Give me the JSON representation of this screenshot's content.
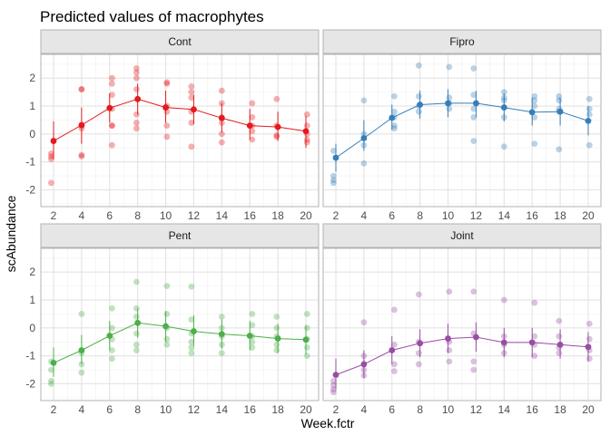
{
  "chart_data": {
    "type": "line",
    "title": "Predicted values of macrophytes",
    "xlabel": "Week.fctr",
    "ylabel": "scAbundance",
    "categories": [
      "2",
      "4",
      "6",
      "8",
      "10",
      "12",
      "14",
      "16",
      "18",
      "20"
    ],
    "ylim": [
      -2.6,
      2.85
    ],
    "yticks": [
      -2,
      -1,
      0,
      1,
      2
    ],
    "grid": true,
    "legend": "none",
    "panels": [
      {
        "name": "Cont",
        "color": "#E41A1C",
        "predicted": [
          -0.25,
          0.32,
          0.93,
          1.25,
          0.95,
          0.88,
          0.57,
          0.3,
          0.25,
          0.1
        ],
        "ci_low": [
          -0.9,
          -0.35,
          0.4,
          0.7,
          0.4,
          0.35,
          0.05,
          -0.2,
          -0.25,
          -0.5
        ],
        "ci_high": [
          0.45,
          0.95,
          1.45,
          1.8,
          1.55,
          1.4,
          1.1,
          0.9,
          0.8,
          0.65
        ],
        "observations": [
          [
            -1.75,
            -0.9,
            -0.7,
            -0.8
          ],
          [
            1.6,
            1.6,
            -0.75,
            -0.8,
            0.3,
            0.2
          ],
          [
            2.0,
            1.8,
            1.4,
            0.9,
            0.3,
            0.3,
            -0.4
          ],
          [
            2.35,
            2.2,
            2.0,
            1.6,
            0.7,
            0.4,
            0.2
          ],
          [
            1.85,
            1.8,
            1.0,
            0.8,
            0.3,
            -0.1
          ],
          [
            1.7,
            1.5,
            1.3,
            0.8,
            0.4,
            -0.45
          ],
          [
            1.55,
            1.1,
            0.6,
            0.4,
            0.0,
            -0.3
          ],
          [
            1.1,
            0.6,
            0.3,
            0.1,
            -0.2
          ],
          [
            1.25,
            0.3,
            -0.05,
            -0.1
          ],
          [
            0.7,
            0.3,
            0.0,
            -0.2,
            -0.3
          ]
        ]
      },
      {
        "name": "Fipro",
        "color": "#377EB8",
        "predicted": [
          -0.85,
          -0.15,
          0.58,
          1.05,
          1.1,
          1.1,
          0.95,
          0.78,
          0.8,
          0.47
        ],
        "ci_low": [
          -1.35,
          -0.6,
          0.15,
          0.55,
          0.6,
          0.6,
          0.45,
          0.3,
          0.3,
          -0.05
        ],
        "ci_high": [
          -0.35,
          0.5,
          1.05,
          1.55,
          1.6,
          1.55,
          1.45,
          1.3,
          1.3,
          1.0
        ],
        "observations": [
          [
            -0.6,
            -1.5,
            -1.65,
            -1.75
          ],
          [
            1.2,
            0.0,
            -0.4,
            -1.05
          ],
          [
            1.35,
            0.8,
            0.6,
            0.3,
            0.2
          ],
          [
            2.45,
            1.35,
            1.0,
            0.8
          ],
          [
            2.4,
            1.3,
            1.1,
            0.9
          ],
          [
            2.35,
            1.4,
            0.9,
            0.6,
            -0.25
          ],
          [
            1.5,
            1.3,
            1.2,
            0.6,
            -0.45
          ],
          [
            1.35,
            1.2,
            1.0,
            0.6,
            -0.35
          ],
          [
            1.35,
            1.2,
            0.9,
            0.8,
            -0.55
          ],
          [
            1.25,
            0.9,
            0.7,
            -0.4
          ]
        ]
      },
      {
        "name": "Pent",
        "color": "#4DAF4A",
        "predicted": [
          -1.25,
          -0.8,
          -0.28,
          0.18,
          0.06,
          -0.12,
          -0.22,
          -0.28,
          -0.38,
          -0.42
        ],
        "ci_low": [
          -1.75,
          -1.3,
          -0.8,
          -0.35,
          -0.5,
          -0.65,
          -0.75,
          -0.8,
          -0.9,
          -0.95
        ],
        "ci_high": [
          -0.7,
          -0.25,
          0.25,
          0.7,
          0.6,
          0.45,
          0.3,
          0.25,
          0.15,
          0.1
        ],
        "observations": [
          [
            -1.2,
            -1.5,
            -1.9,
            -2.0
          ],
          [
            0.5,
            -0.9,
            -1.3,
            -1.6
          ],
          [
            0.7,
            0.0,
            -0.4,
            -0.8,
            -1.1
          ],
          [
            1.65,
            0.7,
            0.4,
            -0.2,
            -0.6,
            -0.8
          ],
          [
            1.5,
            0.5,
            0.0,
            -0.4,
            -0.6
          ],
          [
            1.48,
            0.3,
            -0.2,
            -0.5,
            -0.7,
            -0.9
          ],
          [
            0.4,
            0.0,
            -0.3,
            -0.6,
            -0.9
          ],
          [
            0.5,
            0.1,
            -0.3,
            -0.5,
            -0.7
          ],
          [
            0.4,
            0.0,
            -0.3,
            -0.6,
            -0.8
          ],
          [
            0.5,
            0.0,
            -0.4,
            -0.7,
            -1.0
          ]
        ]
      },
      {
        "name": "Joint",
        "color": "#984EA3",
        "predicted": [
          -1.68,
          -1.3,
          -0.8,
          -0.55,
          -0.38,
          -0.33,
          -0.52,
          -0.52,
          -0.6,
          -0.68
        ],
        "ci_low": [
          -2.2,
          -1.8,
          -1.3,
          -1.05,
          -0.9,
          -0.85,
          -1.05,
          -1.05,
          -1.1,
          -1.2
        ],
        "ci_high": [
          -1.1,
          -0.8,
          -0.3,
          -0.05,
          0.15,
          0.2,
          0.0,
          0.0,
          -0.05,
          -0.15
        ],
        "observations": [
          [
            -1.9,
            -2.05,
            -2.2,
            -2.3
          ],
          [
            0.2,
            -1.0,
            -1.5,
            -1.7
          ],
          [
            0.65,
            -0.6,
            -1.3,
            -1.55
          ],
          [
            1.2,
            -0.5,
            -0.9,
            -1.3
          ],
          [
            1.3,
            -0.5,
            -0.8,
            -1.2
          ],
          [
            1.3,
            -0.2,
            -1.2,
            -1.5
          ],
          [
            1.0,
            -0.3,
            -0.6,
            -0.9
          ],
          [
            0.9,
            -0.3,
            -0.6,
            -1.0
          ],
          [
            0.25,
            -0.3,
            -0.7,
            -0.9
          ],
          [
            0.15,
            -0.4,
            -0.8,
            -1.1
          ]
        ]
      }
    ]
  }
}
